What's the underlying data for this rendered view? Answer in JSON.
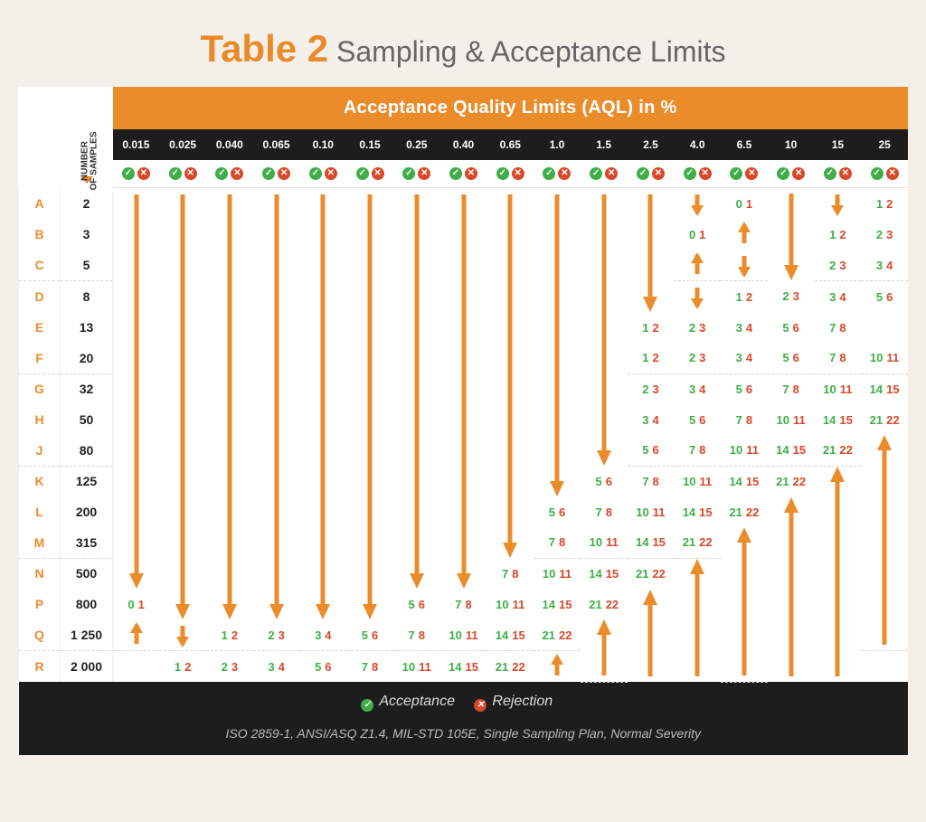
{
  "title_prefix": "Table 2",
  "title_rest": " Sampling & Acceptance Limits",
  "banner": "Acceptance Quality Limits (AQL) in %",
  "nos_label": "NUMBER\nOF SAMPLES",
  "aql_levels": [
    "0.015",
    "0.025",
    "0.040",
    "0.065",
    "0.10",
    "0.15",
    "0.25",
    "0.40",
    "0.65",
    "1.0",
    "1.5",
    "2.5",
    "4.0",
    "6.5",
    "10",
    "15",
    "25"
  ],
  "codes": [
    "A",
    "B",
    "C",
    "D",
    "E",
    "F",
    "G",
    "H",
    "J",
    "K",
    "L",
    "M",
    "N",
    "P",
    "Q",
    "R"
  ],
  "samples": [
    "2",
    "3",
    "5",
    "8",
    "13",
    "20",
    "32",
    "50",
    "80",
    "125",
    "200",
    "315",
    "500",
    "800",
    "1 250",
    "2 000"
  ],
  "group_breaks": [
    2,
    5,
    8,
    11,
    14
  ],
  "colors": {
    "accent": "#eb8c2b",
    "accept": "#3fae49",
    "reject": "#d9482b",
    "dark": "#1d1d1d"
  },
  "legend": {
    "accept": "Acceptance",
    "reject": "Rejection"
  },
  "standards": "ISO 2859-1, ANSI/ASQ Z1.4, MIL-STD 105E, Single Sampling Plan, Normal Severity",
  "cells": [
    [
      [
        "D",
        13
      ],
      [
        "D",
        14
      ],
      [
        "D",
        14
      ],
      [
        "D",
        14
      ],
      [
        "D",
        14
      ],
      [
        "D",
        14
      ],
      [
        "D",
        13
      ],
      [
        "D",
        13
      ],
      [
        "D",
        12
      ],
      [
        "D",
        10
      ],
      [
        "D",
        9
      ],
      [
        "D",
        4
      ],
      [
        "d",
        1
      ],
      [
        0,
        1
      ],
      [
        "D",
        3
      ],
      [
        "d",
        1
      ],
      [
        1,
        2
      ]
    ],
    [
      null,
      null,
      null,
      null,
      null,
      null,
      null,
      null,
      null,
      null,
      null,
      [
        "d",
        1
      ],
      [
        0,
        1
      ],
      [
        "u",
        1
      ],
      [
        "d",
        1
      ],
      [
        1,
        2
      ],
      [
        2,
        3
      ]
    ],
    [
      null,
      null,
      null,
      null,
      null,
      null,
      null,
      null,
      null,
      null,
      [
        "d",
        1
      ],
      [
        0,
        1
      ],
      [
        "u",
        1
      ],
      [
        "d",
        1
      ],
      [
        1,
        2
      ],
      [
        2,
        3
      ],
      [
        3,
        4
      ]
    ],
    [
      null,
      null,
      null,
      null,
      null,
      null,
      null,
      null,
      null,
      [
        "d",
        1
      ],
      [
        0,
        1
      ],
      [
        "u",
        1
      ],
      [
        "d",
        1
      ],
      [
        1,
        2
      ],
      [
        2,
        3
      ],
      [
        3,
        4
      ],
      [
        5,
        6
      ]
    ],
    [
      null,
      null,
      null,
      null,
      null,
      null,
      null,
      null,
      [
        0,
        1
      ],
      [
        "u",
        1
      ],
      [
        "d",
        1
      ],
      [
        1,
        2
      ],
      [
        2,
        3
      ],
      [
        3,
        4
      ],
      [
        5,
        6
      ],
      [
        7,
        8
      ]
    ],
    [
      null,
      null,
      null,
      null,
      null,
      null,
      null,
      [
        "d",
        1
      ],
      [
        0,
        1
      ],
      [
        "u",
        1
      ],
      [
        "d",
        1
      ],
      [
        1,
        2
      ],
      [
        2,
        3
      ],
      [
        3,
        4
      ],
      [
        5,
        6
      ],
      [
        7,
        8
      ],
      [
        10,
        11
      ]
    ],
    [
      null,
      null,
      null,
      null,
      null,
      null,
      [
        "d",
        1
      ],
      [
        0,
        1
      ],
      [
        "u",
        1
      ],
      [
        "d",
        1
      ],
      [
        1,
        2
      ],
      [
        2,
        3
      ],
      [
        3,
        4
      ],
      [
        5,
        6
      ],
      [
        7,
        8
      ],
      [
        10,
        11
      ],
      [
        14,
        15
      ]
    ],
    [
      null,
      null,
      null,
      null,
      null,
      [
        "d",
        1
      ],
      [
        0,
        1
      ],
      [
        "u",
        1
      ],
      [
        "d",
        1
      ],
      [
        1,
        2
      ],
      [
        2,
        3
      ],
      [
        3,
        4
      ],
      [
        5,
        6
      ],
      [
        7,
        8
      ],
      [
        10,
        11
      ],
      [
        14,
        15
      ],
      [
        21,
        22
      ]
    ],
    [
      null,
      null,
      null,
      null,
      [
        "d",
        1
      ],
      [
        0,
        1
      ],
      [
        "u",
        1
      ],
      [
        "d",
        1
      ],
      [
        1,
        2
      ],
      [
        2,
        3
      ],
      [
        3,
        4
      ],
      [
        5,
        6
      ],
      [
        7,
        8
      ],
      [
        10,
        11
      ],
      [
        14,
        15
      ],
      [
        21,
        22
      ],
      [
        "U",
        7
      ]
    ],
    [
      null,
      null,
      null,
      [
        "d",
        1
      ],
      [
        0,
        1
      ],
      [
        "u",
        1
      ],
      [
        "d",
        1
      ],
      [
        1,
        2
      ],
      [
        2,
        3
      ],
      [
        3,
        4
      ],
      [
        5,
        6
      ],
      [
        7,
        8
      ],
      [
        10,
        11
      ],
      [
        14,
        15
      ],
      [
        21,
        22
      ],
      [
        "U",
        7
      ],
      null
    ],
    [
      null,
      null,
      [
        "d",
        1
      ],
      [
        0,
        1
      ],
      [
        "u",
        1
      ],
      [
        "d",
        1
      ],
      [
        1,
        2
      ],
      [
        2,
        3
      ],
      [
        3,
        4
      ],
      [
        5,
        6
      ],
      [
        7,
        8
      ],
      [
        10,
        11
      ],
      [
        14,
        15
      ],
      [
        21,
        22
      ],
      [
        "U",
        6
      ],
      null,
      null
    ],
    [
      null,
      [
        "d",
        1
      ],
      [
        0,
        1
      ],
      [
        "u",
        1
      ],
      [
        "d",
        1
      ],
      [
        1,
        2
      ],
      [
        2,
        3
      ],
      [
        3,
        4
      ],
      [
        5,
        6
      ],
      [
        7,
        8
      ],
      [
        10,
        11
      ],
      [
        14,
        15
      ],
      [
        21,
        22
      ],
      [
        "U",
        5
      ],
      null,
      null,
      null
    ],
    [
      [
        "d",
        1
      ],
      [
        0,
        1
      ],
      [
        "u",
        1
      ],
      [
        "d",
        1
      ],
      [
        1,
        2
      ],
      [
        2,
        3
      ],
      [
        3,
        4
      ],
      [
        5,
        6
      ],
      [
        7,
        8
      ],
      [
        10,
        11
      ],
      [
        14,
        15
      ],
      [
        21,
        22
      ],
      [
        "U",
        4
      ],
      null,
      null,
      null,
      null
    ],
    [
      [
        0,
        1
      ],
      [
        "u",
        1
      ],
      [
        "d",
        1
      ],
      [
        1,
        2
      ],
      [
        2,
        3
      ],
      [
        3,
        4
      ],
      [
        5,
        6
      ],
      [
        7,
        8
      ],
      [
        10,
        11
      ],
      [
        14,
        15
      ],
      [
        21,
        22
      ],
      [
        "U",
        3
      ],
      null,
      null,
      null,
      null,
      null
    ],
    [
      [
        "u",
        2
      ],
      [
        "d",
        1
      ],
      [
        1,
        2
      ],
      [
        2,
        3
      ],
      [
        3,
        4
      ],
      [
        5,
        6
      ],
      [
        7,
        8
      ],
      [
        10,
        11
      ],
      [
        14,
        15
      ],
      [
        21,
        22
      ],
      [
        "U",
        2
      ],
      null,
      null,
      null,
      null,
      null,
      null
    ],
    [
      null,
      [
        1,
        2
      ],
      [
        2,
        3
      ],
      [
        3,
        4
      ],
      [
        5,
        6
      ],
      [
        7,
        8
      ],
      [
        10,
        11
      ],
      [
        14,
        15
      ],
      [
        21,
        22
      ],
      [
        "u",
        1
      ],
      null,
      null,
      null,
      null,
      null,
      null,
      null
    ]
  ]
}
